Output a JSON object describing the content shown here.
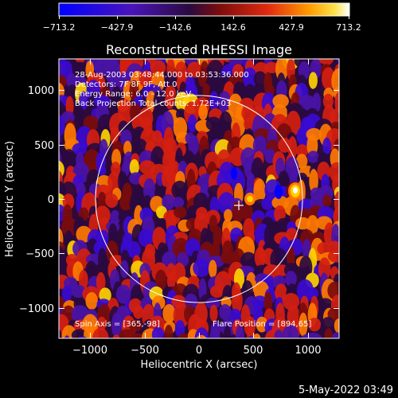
{
  "colorbar": {
    "ticks": [
      "−713.2",
      "−427.9",
      "−142.6",
      "142.6",
      "427.9",
      "713.2"
    ]
  },
  "title": "Reconstructed RHESSI Image",
  "annotations": {
    "time": "28-Aug-2003 03:48:44.000 to 03:53:36.000",
    "detectors": "Detectors: 7F 8F 9F, Att 0",
    "energy": "Energy Range: 6.0 - 12.0 keV",
    "method": "Back Projection   Total counts: 1.72E+03",
    "spin_axis": "Spin Axis = [365,-98]",
    "flare_position": "Flare Position = [894,65]"
  },
  "axes": {
    "xlabel": "Heliocentric X (arcsec)",
    "ylabel": "Heliocentric Y (arcsec)",
    "xticks": [
      "−1000",
      "−500",
      "0",
      "500",
      "1000"
    ],
    "yticks": [
      "1000",
      "500",
      "0",
      "−500",
      "−1000"
    ]
  },
  "footer_date": "5-May-2022 03:49",
  "colors": {
    "background": "#000000",
    "limb": "#ffffff",
    "colormap": [
      "#0000ff",
      "#3a0bd0",
      "#4a14a8",
      "#2a0a40",
      "#7a0c0c",
      "#d42010",
      "#ff7a00",
      "#ffd200",
      "#ffffff"
    ]
  }
}
